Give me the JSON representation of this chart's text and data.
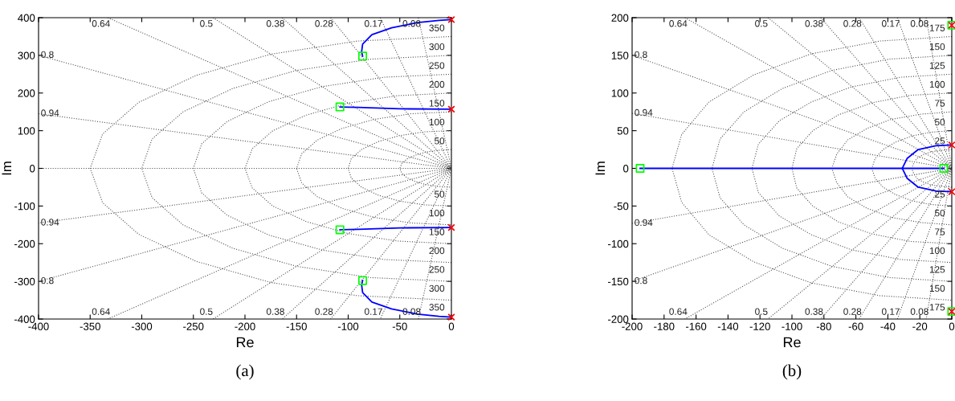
{
  "chart_data": [
    {
      "type": "line",
      "xlabel": "Re",
      "ylabel": "Im",
      "xlim": [
        -400,
        0
      ],
      "ylim": [
        -400,
        400
      ],
      "xticks": [
        -400,
        -350,
        -300,
        -250,
        -200,
        -150,
        -100,
        -50,
        0
      ],
      "yticks": [
        -400,
        -300,
        -200,
        -100,
        0,
        100,
        200,
        300,
        400
      ],
      "grid": false,
      "legend": false,
      "ref_lines": [
        {
          "axis": "y",
          "value": 0,
          "color": "#555555",
          "line_style": "dotted"
        }
      ],
      "series": [
        {
          "color": "#555555",
          "line_style": "dotted",
          "x": [
            -32,
            0,
            -32,
            null,
            -69,
            0,
            -69,
            null,
            -117,
            0,
            -117,
            null,
            -164,
            0,
            -164,
            null,
            -231,
            0,
            -231,
            null,
            -333,
            0,
            -333,
            null,
            -400,
            0,
            -400,
            null,
            -400,
            0,
            -400,
            null,
            0,
            -13,
            -25,
            -35,
            -43,
            -48,
            -50,
            -48,
            -43,
            -35,
            -25,
            -13,
            0,
            null,
            0,
            -26,
            -50,
            -71,
            -87,
            -97,
            -100,
            -97,
            -87,
            -71,
            -50,
            -26,
            0,
            null,
            0,
            -39,
            -75,
            -106,
            -130,
            -145,
            -150,
            -145,
            -130,
            -106,
            -75,
            -39,
            0,
            null,
            0,
            -52,
            -100,
            -141,
            -173,
            -193,
            -200,
            -193,
            -173,
            -141,
            -100,
            -52,
            0,
            null,
            0,
            -65,
            -125,
            -177,
            -217,
            -242,
            -250,
            -242,
            -217,
            -177,
            -125,
            -65,
            0,
            null,
            0,
            -78,
            -150,
            -212,
            -260,
            -290,
            -300,
            -290,
            -260,
            -212,
            -150,
            -78,
            0,
            null,
            0,
            -91,
            -175,
            -247,
            -303,
            -338,
            -350,
            -338,
            -303,
            -247,
            -175,
            -91,
            0
          ],
          "values": [
            400,
            0,
            -400,
            null,
            400,
            0,
            -400,
            null,
            400,
            0,
            -400,
            null,
            400,
            0,
            -400,
            null,
            400,
            0,
            -400,
            null,
            400,
            0,
            -400,
            null,
            300,
            0,
            -300,
            null,
            145,
            0,
            -145,
            null,
            50,
            48,
            43,
            35,
            25,
            13,
            0,
            -13,
            -25,
            -35,
            -43,
            -48,
            -50,
            null,
            100,
            97,
            87,
            71,
            50,
            26,
            0,
            -26,
            -50,
            -71,
            -87,
            -97,
            -100,
            null,
            150,
            145,
            130,
            106,
            75,
            39,
            0,
            -39,
            -75,
            -106,
            -130,
            -145,
            -150,
            null,
            200,
            193,
            173,
            141,
            100,
            52,
            0,
            -52,
            -100,
            -141,
            -173,
            -193,
            -200,
            null,
            250,
            242,
            217,
            177,
            125,
            65,
            0,
            -65,
            -125,
            -177,
            -217,
            -242,
            -250,
            null,
            300,
            290,
            260,
            212,
            150,
            78,
            0,
            -78,
            -150,
            -212,
            -260,
            -290,
            -300,
            null,
            350,
            338,
            303,
            247,
            175,
            91,
            0,
            -91,
            -175,
            -247,
            -303,
            -338,
            -350
          ]
        },
        {
          "color": "#0000ff",
          "line_style": "solid",
          "x": [
            0,
            -12,
            -33,
            -58,
            -77,
            -86,
            -87,
            -86
          ],
          "values": [
            395,
            393,
            387,
            373,
            355,
            330,
            309,
            298
          ]
        },
        {
          "color": "#0000ff",
          "line_style": "solid",
          "x": [
            0,
            -50,
            -90,
            -108
          ],
          "values": [
            157,
            158,
            162,
            163
          ]
        },
        {
          "color": "#0000ff",
          "line_style": "solid",
          "x": [
            0,
            -50,
            -90,
            -108
          ],
          "values": [
            -157,
            -158,
            -162,
            -163
          ]
        },
        {
          "color": "#0000ff",
          "line_style": "solid",
          "x": [
            0,
            -12,
            -33,
            -58,
            -77,
            -86,
            -87,
            -86
          ],
          "values": [
            -395,
            -393,
            -387,
            -373,
            -355,
            -330,
            -309,
            -298
          ]
        },
        {
          "type": "scatter",
          "marker": "cross",
          "color": "#ff0000",
          "x": [
            0,
            0,
            0,
            0
          ],
          "values": [
            395,
            157,
            -157,
            -395
          ]
        },
        {
          "type": "scatter",
          "marker": "square",
          "color": "#00ff00",
          "x": [
            -86,
            -108,
            -108,
            -86
          ],
          "values": [
            298,
            163,
            -163,
            -298
          ]
        }
      ],
      "annotations": [
        {
          "text": "0.08",
          "x": -32,
          "y": 400
        },
        {
          "text": "0.17",
          "x": -69,
          "y": 400
        },
        {
          "text": "0.28",
          "x": -117,
          "y": 400
        },
        {
          "text": "0.38",
          "x": -164,
          "y": 400
        },
        {
          "text": "0.5",
          "x": -231,
          "y": 400
        },
        {
          "text": "0.64",
          "x": -333,
          "y": 400
        },
        {
          "text": "0.8",
          "x": -400,
          "y": 300
        },
        {
          "text": "0.94",
          "x": -400,
          "y": 145
        },
        {
          "text": "0.08",
          "x": -32,
          "y": -400
        },
        {
          "text": "0.17",
          "x": -69,
          "y": -400
        },
        {
          "text": "0.28",
          "x": -117,
          "y": -400
        },
        {
          "text": "0.38",
          "x": -164,
          "y": -400
        },
        {
          "text": "0.5",
          "x": -231,
          "y": -400
        },
        {
          "text": "0.64",
          "x": -333,
          "y": -400
        },
        {
          "text": "0.8",
          "x": -400,
          "y": -300
        },
        {
          "text": "0.94",
          "x": -400,
          "y": -145
        },
        {
          "text": "50",
          "x": 0,
          "y": 50
        },
        {
          "text": "100",
          "x": 0,
          "y": 100
        },
        {
          "text": "150",
          "x": 0,
          "y": 150
        },
        {
          "text": "200",
          "x": 0,
          "y": 200
        },
        {
          "text": "250",
          "x": 0,
          "y": 250
        },
        {
          "text": "300",
          "x": 0,
          "y": 300
        },
        {
          "text": "350",
          "x": 0,
          "y": 350
        },
        {
          "text": "50",
          "x": 0,
          "y": -50
        },
        {
          "text": "100",
          "x": 0,
          "y": -100
        },
        {
          "text": "150",
          "x": 0,
          "y": -150
        },
        {
          "text": "200",
          "x": 0,
          "y": -200
        },
        {
          "text": "250",
          "x": 0,
          "y": -250
        },
        {
          "text": "300",
          "x": 0,
          "y": -300
        },
        {
          "text": "350",
          "x": 0,
          "y": -350
        },
        "(a)"
      ]
    },
    {
      "type": "line",
      "xlabel": "Re",
      "ylabel": "Im",
      "xlim": [
        -200,
        0
      ],
      "ylim": [
        -200,
        200
      ],
      "xticks": [
        -200,
        -180,
        -160,
        -140,
        -120,
        -100,
        -80,
        -60,
        -40,
        -20,
        0
      ],
      "yticks": [
        -200,
        -150,
        -100,
        -50,
        0,
        50,
        100,
        150,
        200
      ],
      "grid": false,
      "legend": false,
      "series": [
        {
          "color": "#555555",
          "line_style": "dotted",
          "x": [
            -16,
            0,
            -16,
            null,
            -34,
            0,
            -34,
            null,
            -58,
            0,
            -58,
            null,
            -82,
            0,
            -82,
            null,
            -115,
            0,
            -115,
            null,
            -167,
            0,
            -167,
            null,
            -200,
            0,
            -200,
            null,
            -200,
            0,
            -200,
            null,
            0,
            -6,
            -13,
            -18,
            -22,
            -24,
            -25,
            -24,
            -22,
            -18,
            -13,
            -6,
            0,
            null,
            0,
            -13,
            -25,
            -35,
            -43,
            -48,
            -50,
            -48,
            -43,
            -35,
            -25,
            -13,
            0,
            null,
            0,
            -19,
            -38,
            -53,
            -65,
            -72,
            -75,
            -72,
            -65,
            -53,
            -38,
            -19,
            0,
            null,
            0,
            -26,
            -50,
            -71,
            -87,
            -97,
            -100,
            -97,
            -87,
            -71,
            -50,
            -26,
            0,
            null,
            0,
            -32,
            -63,
            -88,
            -108,
            -121,
            -125,
            -121,
            -108,
            -88,
            -63,
            -32,
            0,
            null,
            0,
            -39,
            -75,
            -106,
            -130,
            -145,
            -150,
            -145,
            -130,
            -106,
            -75,
            -39,
            0,
            null,
            0,
            -45,
            -88,
            -124,
            -152,
            -169,
            -175,
            -169,
            -152,
            -124,
            -88,
            -45,
            0
          ],
          "values": [
            200,
            0,
            -200,
            null,
            200,
            0,
            -200,
            null,
            200,
            0,
            -200,
            null,
            200,
            0,
            -200,
            null,
            200,
            0,
            -200,
            null,
            200,
            0,
            -200,
            null,
            150,
            0,
            -150,
            null,
            73,
            0,
            -73,
            null,
            25,
            24,
            22,
            18,
            13,
            6,
            0,
            -6,
            -13,
            -18,
            -22,
            -24,
            -25,
            null,
            50,
            48,
            43,
            35,
            25,
            13,
            0,
            -13,
            -25,
            -35,
            -43,
            -48,
            -50,
            null,
            75,
            72,
            65,
            53,
            38,
            19,
            0,
            -19,
            -38,
            -53,
            -65,
            -72,
            -75,
            null,
            100,
            97,
            87,
            71,
            50,
            26,
            0,
            -26,
            -50,
            -71,
            -87,
            -97,
            -100,
            null,
            125,
            121,
            108,
            88,
            63,
            32,
            0,
            -32,
            -63,
            -88,
            -108,
            -121,
            -125,
            null,
            150,
            145,
            130,
            106,
            75,
            39,
            0,
            -39,
            -75,
            -106,
            -130,
            -145,
            -150,
            null,
            175,
            169,
            152,
            124,
            88,
            45,
            0,
            -45,
            -88,
            -124,
            -152,
            -169,
            -175
          ]
        },
        {
          "color": "#0000ff",
          "line_style": "solid",
          "x": [
            0,
            -10,
            -21,
            -28,
            -31
          ],
          "values": [
            31,
            30,
            25,
            13,
            0
          ]
        },
        {
          "color": "#0000ff",
          "line_style": "solid",
          "x": [
            0,
            -10,
            -21,
            -28,
            -31
          ],
          "values": [
            -31,
            -30,
            -25,
            -13,
            0
          ]
        },
        {
          "color": "#0000ff",
          "line_style": "solid",
          "x": [
            -195,
            -31,
            -5
          ],
          "values": [
            0,
            0,
            0
          ]
        },
        {
          "type": "scatter",
          "marker": "square",
          "color": "#00ff00",
          "x": [
            -195,
            -5,
            0,
            0
          ],
          "values": [
            0,
            0,
            190,
            -190
          ]
        },
        {
          "type": "scatter",
          "marker": "cross",
          "color": "#ff0000",
          "x": [
            0,
            0,
            0,
            0
          ],
          "values": [
            190,
            31,
            -31,
            -190
          ]
        }
      ],
      "annotations": [
        {
          "text": "0.08",
          "x": -16,
          "y": 200
        },
        {
          "text": "0.17",
          "x": -34,
          "y": 200
        },
        {
          "text": "0.28",
          "x": -58,
          "y": 200
        },
        {
          "text": "0.38",
          "x": -82,
          "y": 200
        },
        {
          "text": "0.5",
          "x": -115,
          "y": 200
        },
        {
          "text": "0.64",
          "x": -167,
          "y": 200
        },
        {
          "text": "0.8",
          "x": -200,
          "y": 150
        },
        {
          "text": "0.94",
          "x": -200,
          "y": 73
        },
        {
          "text": "0.08",
          "x": -16,
          "y": -200
        },
        {
          "text": "0.17",
          "x": -34,
          "y": -200
        },
        {
          "text": "0.28",
          "x": -58,
          "y": -200
        },
        {
          "text": "0.38",
          "x": -82,
          "y": -200
        },
        {
          "text": "0.5",
          "x": -115,
          "y": -200
        },
        {
          "text": "0.64",
          "x": -167,
          "y": -200
        },
        {
          "text": "0.8",
          "x": -200,
          "y": -150
        },
        {
          "text": "0.94",
          "x": -200,
          "y": -73
        },
        {
          "text": "25",
          "x": 0,
          "y": 25
        },
        {
          "text": "50",
          "x": 0,
          "y": 50
        },
        {
          "text": "75",
          "x": 0,
          "y": 75
        },
        {
          "text": "100",
          "x": 0,
          "y": 100
        },
        {
          "text": "125",
          "x": 0,
          "y": 125
        },
        {
          "text": "150",
          "x": 0,
          "y": 150
        },
        {
          "text": "175",
          "x": 0,
          "y": 175
        },
        {
          "text": "25",
          "x": 0,
          "y": -25
        },
        {
          "text": "50",
          "x": 0,
          "y": -50
        },
        {
          "text": "75",
          "x": 0,
          "y": -75
        },
        {
          "text": "100",
          "x": 0,
          "y": -100
        },
        {
          "text": "125",
          "x": 0,
          "y": -125
        },
        {
          "text": "150",
          "x": 0,
          "y": -150
        },
        {
          "text": "175",
          "x": 0,
          "y": -175
        },
        "(b)"
      ]
    }
  ]
}
